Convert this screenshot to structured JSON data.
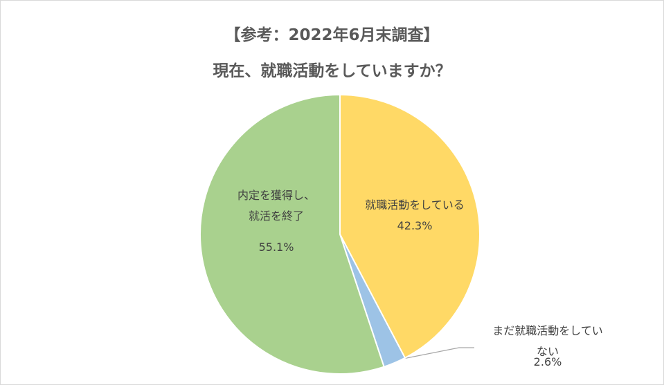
{
  "chart_data": {
    "type": "pie",
    "title": "【参考：2022年6月末調査】",
    "subtitle": "現在、就職活動をしていますか？",
    "categories": [
      "就職活動をしている",
      "まだ就職活動をしていない",
      "内定を獲得し、\n就活を終了"
    ],
    "values": [
      42.3,
      2.6,
      55.1
    ],
    "value_labels": [
      "42.3%",
      "2.6%",
      "55.1%"
    ],
    "colors": [
      "#FFD966",
      "#9DC3E6",
      "#A9D18E"
    ]
  }
}
